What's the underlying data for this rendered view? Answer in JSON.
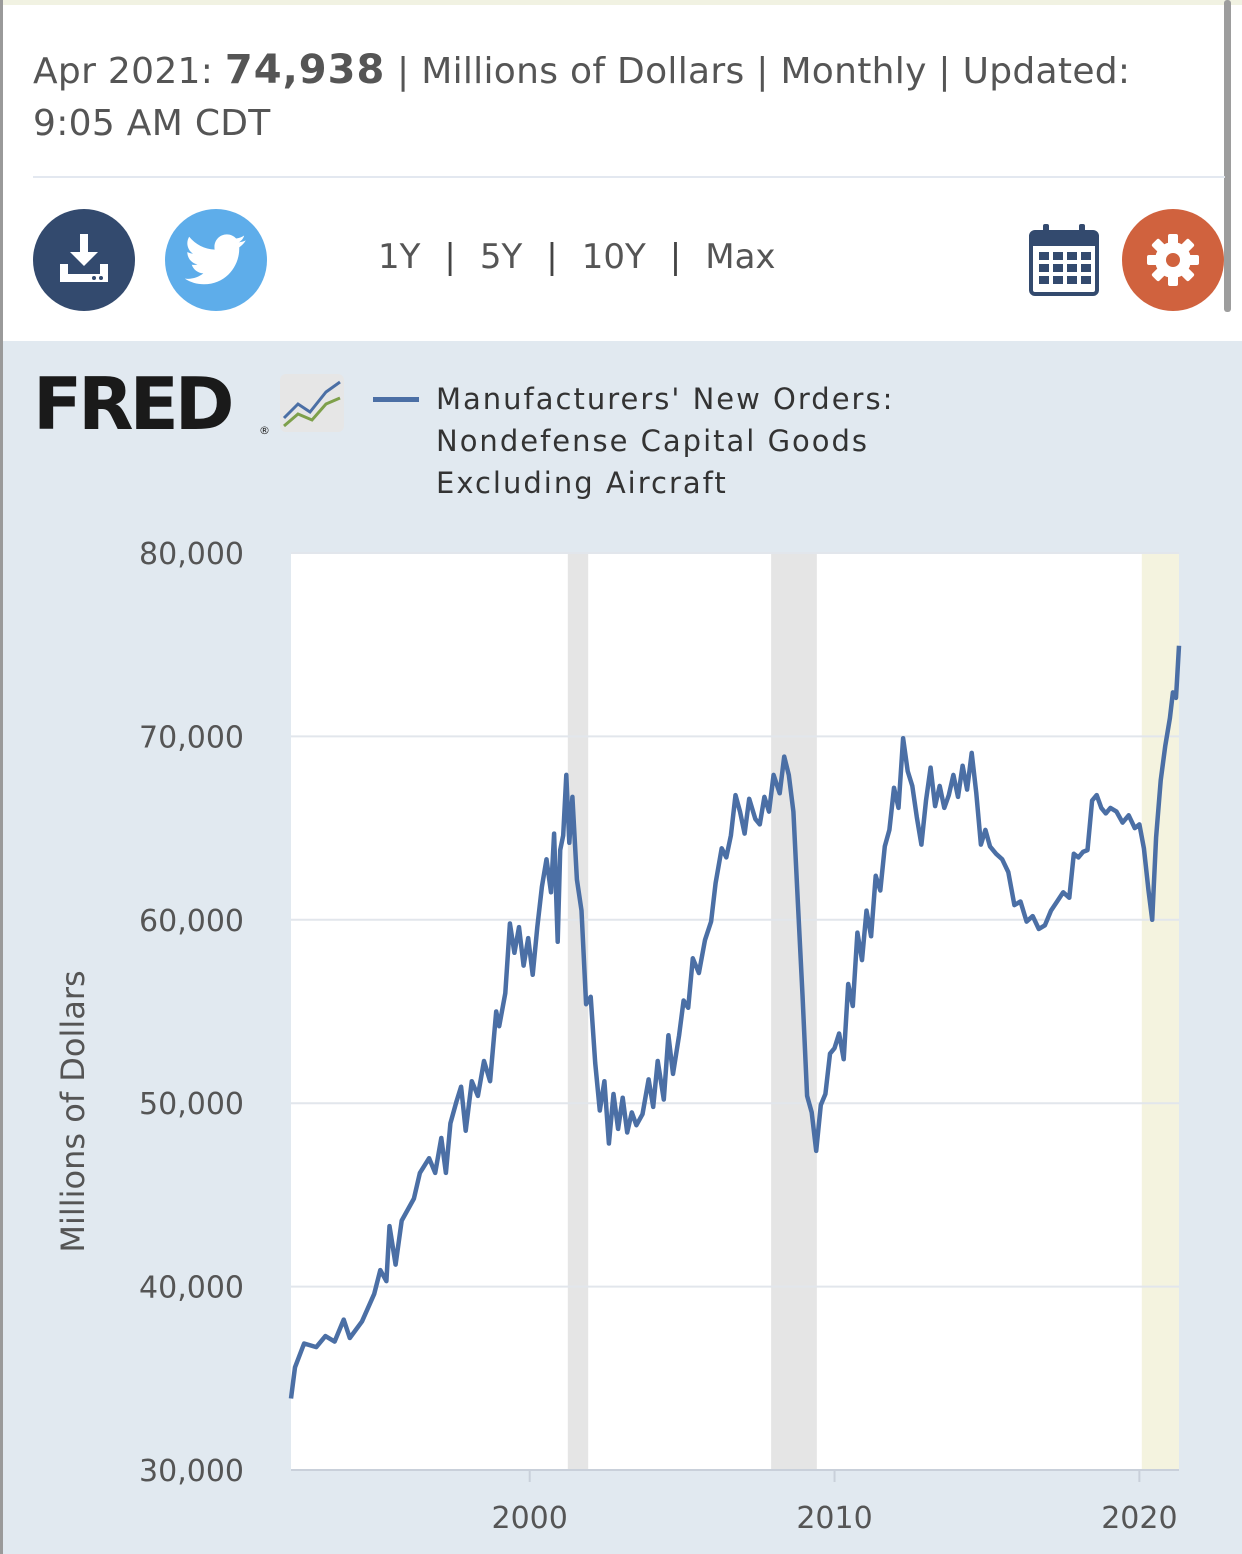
{
  "header": {
    "period": "Apr 2021:",
    "value": "74,938",
    "units_text": "| Millions of Dollars | Monthly | Updated:",
    "updated_time": "9:05 AM CDT"
  },
  "toolbar": {
    "download_icon": "download-icon",
    "twitter_icon": "twitter-bird-icon",
    "calendar_icon": "calendar-icon",
    "settings_icon": "gear-icon",
    "ranges": [
      "1Y",
      "5Y",
      "10Y",
      "Max"
    ]
  },
  "colors": {
    "line": "#4b6fa5",
    "panel_bg": "#e1e9f0",
    "recession": "#e5e5e5",
    "highlight": "#f4f3df",
    "download_btn": "#334a6e",
    "twitter_btn": "#5eadea",
    "settings_btn": "#d0623e"
  },
  "logo": {
    "text": "FRED",
    "reg": "®"
  },
  "chart_data": {
    "type": "line",
    "series": [
      {
        "name": "Manufacturers' New Orders: Nondefense Capital Goods Excluding Aircraft",
        "points": [
          [
            1992.17,
            33900
          ],
          [
            1992.3,
            35600
          ],
          [
            1992.6,
            36900
          ],
          [
            1993.0,
            36700
          ],
          [
            1993.3,
            37300
          ],
          [
            1993.6,
            37000
          ],
          [
            1993.9,
            38200
          ],
          [
            1994.1,
            37200
          ],
          [
            1994.5,
            38100
          ],
          [
            1994.9,
            39600
          ],
          [
            1995.1,
            40900
          ],
          [
            1995.3,
            40300
          ],
          [
            1995.4,
            43300
          ],
          [
            1995.6,
            41200
          ],
          [
            1995.8,
            43600
          ],
          [
            1996.0,
            44200
          ],
          [
            1996.2,
            44800
          ],
          [
            1996.4,
            46200
          ],
          [
            1996.7,
            47000
          ],
          [
            1996.9,
            46200
          ],
          [
            1997.1,
            48100
          ],
          [
            1997.25,
            46200
          ],
          [
            1997.4,
            48900
          ],
          [
            1997.6,
            50100
          ],
          [
            1997.75,
            50900
          ],
          [
            1997.9,
            48500
          ],
          [
            1998.1,
            51200
          ],
          [
            1998.3,
            50400
          ],
          [
            1998.5,
            52300
          ],
          [
            1998.7,
            51200
          ],
          [
            1998.9,
            55000
          ],
          [
            1999.0,
            54200
          ],
          [
            1999.2,
            56000
          ],
          [
            1999.35,
            59800
          ],
          [
            1999.5,
            58200
          ],
          [
            1999.65,
            59600
          ],
          [
            1999.8,
            57500
          ],
          [
            1999.95,
            59000
          ],
          [
            2000.1,
            57000
          ],
          [
            2000.25,
            59600
          ],
          [
            2000.4,
            61800
          ],
          [
            2000.55,
            63300
          ],
          [
            2000.7,
            61500
          ],
          [
            2000.8,
            64700
          ],
          [
            2000.92,
            58800
          ],
          [
            2001.0,
            63800
          ],
          [
            2001.1,
            64600
          ],
          [
            2001.2,
            67900
          ],
          [
            2001.3,
            64200
          ],
          [
            2001.4,
            66700
          ],
          [
            2001.55,
            62200
          ],
          [
            2001.7,
            60500
          ],
          [
            2001.85,
            55400
          ],
          [
            2002.0,
            55800
          ],
          [
            2002.15,
            52200
          ],
          [
            2002.3,
            49600
          ],
          [
            2002.45,
            51200
          ],
          [
            2002.6,
            47800
          ],
          [
            2002.75,
            50500
          ],
          [
            2002.9,
            48600
          ],
          [
            2003.05,
            50300
          ],
          [
            2003.2,
            48400
          ],
          [
            2003.35,
            49500
          ],
          [
            2003.5,
            48800
          ],
          [
            2003.7,
            49400
          ],
          [
            2003.9,
            51300
          ],
          [
            2004.05,
            49800
          ],
          [
            2004.2,
            52300
          ],
          [
            2004.4,
            50200
          ],
          [
            2004.55,
            53700
          ],
          [
            2004.7,
            51600
          ],
          [
            2004.9,
            53700
          ],
          [
            2005.05,
            55600
          ],
          [
            2005.2,
            55200
          ],
          [
            2005.35,
            57900
          ],
          [
            2005.55,
            57100
          ],
          [
            2005.75,
            58900
          ],
          [
            2005.95,
            59900
          ],
          [
            2006.1,
            62000
          ],
          [
            2006.3,
            63900
          ],
          [
            2006.45,
            63400
          ],
          [
            2006.6,
            64600
          ],
          [
            2006.75,
            66800
          ],
          [
            2006.9,
            65900
          ],
          [
            2007.05,
            64700
          ],
          [
            2007.2,
            66600
          ],
          [
            2007.4,
            65500
          ],
          [
            2007.55,
            65200
          ],
          [
            2007.7,
            66700
          ],
          [
            2007.85,
            65900
          ],
          [
            2008.0,
            67900
          ],
          [
            2008.2,
            66900
          ],
          [
            2008.35,
            68900
          ],
          [
            2008.5,
            67900
          ],
          [
            2008.65,
            65900
          ],
          [
            2008.8,
            60900
          ],
          [
            2008.95,
            55900
          ],
          [
            2009.1,
            50400
          ],
          [
            2009.25,
            49500
          ],
          [
            2009.4,
            47400
          ],
          [
            2009.55,
            49900
          ],
          [
            2009.7,
            50500
          ],
          [
            2009.85,
            52700
          ],
          [
            2010.0,
            53000
          ],
          [
            2010.15,
            53800
          ],
          [
            2010.3,
            52400
          ],
          [
            2010.45,
            56500
          ],
          [
            2010.6,
            55300
          ],
          [
            2010.75,
            59300
          ],
          [
            2010.9,
            57800
          ],
          [
            2011.05,
            60500
          ],
          [
            2011.2,
            59100
          ],
          [
            2011.35,
            62400
          ],
          [
            2011.5,
            61600
          ],
          [
            2011.65,
            64000
          ],
          [
            2011.8,
            64900
          ],
          [
            2011.95,
            67200
          ],
          [
            2012.1,
            66100
          ],
          [
            2012.25,
            69900
          ],
          [
            2012.4,
            68100
          ],
          [
            2012.55,
            67300
          ],
          [
            2012.7,
            65600
          ],
          [
            2012.85,
            64100
          ],
          [
            2013.0,
            66500
          ],
          [
            2013.15,
            68300
          ],
          [
            2013.3,
            66200
          ],
          [
            2013.45,
            67300
          ],
          [
            2013.6,
            66100
          ],
          [
            2013.75,
            66800
          ],
          [
            2013.9,
            67900
          ],
          [
            2014.05,
            66700
          ],
          [
            2014.2,
            68400
          ],
          [
            2014.35,
            67100
          ],
          [
            2014.5,
            69100
          ],
          [
            2014.65,
            66900
          ],
          [
            2014.8,
            64100
          ],
          [
            2014.95,
            64900
          ],
          [
            2015.1,
            64000
          ],
          [
            2015.3,
            63600
          ],
          [
            2015.5,
            63300
          ],
          [
            2015.7,
            62600
          ],
          [
            2015.9,
            60800
          ],
          [
            2016.1,
            61000
          ],
          [
            2016.3,
            59900
          ],
          [
            2016.5,
            60200
          ],
          [
            2016.7,
            59500
          ],
          [
            2016.9,
            59700
          ],
          [
            2017.1,
            60500
          ],
          [
            2017.3,
            61000
          ],
          [
            2017.5,
            61500
          ],
          [
            2017.7,
            61200
          ],
          [
            2017.85,
            63600
          ],
          [
            2018.0,
            63400
          ],
          [
            2018.15,
            63700
          ],
          [
            2018.3,
            63800
          ],
          [
            2018.45,
            66500
          ],
          [
            2018.6,
            66800
          ],
          [
            2018.75,
            66100
          ],
          [
            2018.9,
            65800
          ],
          [
            2019.05,
            66100
          ],
          [
            2019.25,
            65900
          ],
          [
            2019.45,
            65300
          ],
          [
            2019.65,
            65700
          ],
          [
            2019.85,
            65000
          ],
          [
            2020.0,
            65200
          ],
          [
            2020.15,
            63900
          ],
          [
            2020.3,
            61600
          ],
          [
            2020.42,
            60000
          ],
          [
            2020.55,
            64500
          ],
          [
            2020.7,
            67600
          ],
          [
            2020.85,
            69500
          ],
          [
            2021.0,
            71000
          ],
          [
            2021.1,
            72400
          ],
          [
            2021.2,
            72100
          ],
          [
            2021.3,
            74938
          ]
        ]
      }
    ],
    "xlabel": "",
    "ylabel": "Millions of Dollars",
    "xlim": [
      1992.17,
      2021.3
    ],
    "ylim": [
      30000,
      80000
    ],
    "yticks": [
      30000,
      40000,
      50000,
      60000,
      70000,
      80000
    ],
    "ytick_labels": [
      "30,000",
      "40,000",
      "50,000",
      "60,000",
      "70,000",
      "80,000"
    ],
    "xticks": [
      2000,
      2010,
      2020
    ],
    "xtick_labels": [
      "2000",
      "2010",
      "2020"
    ],
    "recessions": [
      [
        2001.25,
        2001.92
      ],
      [
        2007.92,
        2009.42
      ],
      [
        2020.08,
        2021.3
      ]
    ],
    "grid": true
  }
}
